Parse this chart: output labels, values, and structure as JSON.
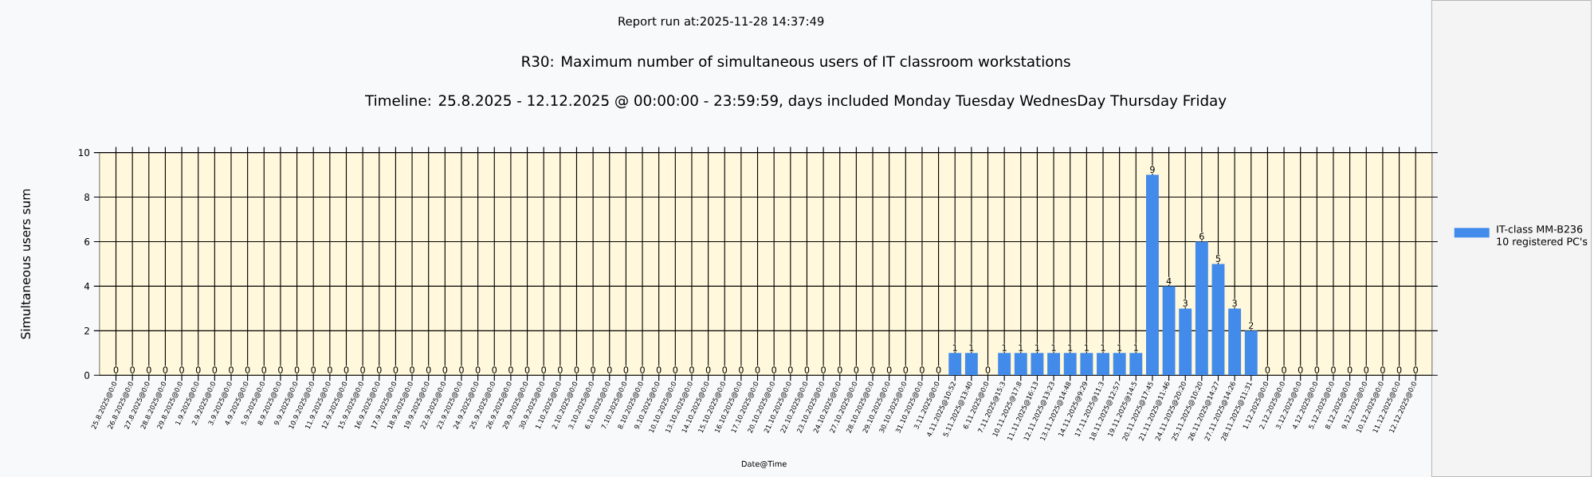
{
  "chart_data": {
    "type": "bar",
    "title": "R30: Maximum number of simultaneous users of IT classroom workstations",
    "subtitle": "Timeline: 25.8.2025  - 12.12.2025  @  00:00:00 -  23:59:59, days included Monday Tuesday WednesDay Thursday Friday",
    "xlabel": "Date@Time",
    "ylabel": "Simultaneous users sum",
    "annotations": [
      "Report run at:2025-11-28 14:37:49"
    ],
    "categories": [
      "25.8.2025@0:0",
      "26.8.2025@0:0",
      "27.8.2025@0:0",
      "28.8.2025@0:0",
      "29.8.2025@0:0",
      "1.9.2025@0:0",
      "2.9.2025@0:0",
      "3.9.2025@0:0",
      "4.9.2025@0:0",
      "5.9.2025@0:0",
      "8.9.2025@0:0",
      "9.9.2025@0:0",
      "10.9.2025@0:0",
      "11.9.2025@0:0",
      "12.9.2025@0:0",
      "15.9.2025@0:0",
      "16.9.2025@0:0",
      "17.9.2025@0:0",
      "18.9.2025@0:0",
      "19.9.2025@0:0",
      "22.9.2025@0:0",
      "23.9.2025@0:0",
      "24.9.2025@0:0",
      "25.9.2025@0:0",
      "26.9.2025@0:0",
      "29.9.2025@0:0",
      "30.9.2025@0:0",
      "1.10.2025@0:0",
      "2.10.2025@0:0",
      "3.10.2025@0:0",
      "6.10.2025@0:0",
      "7.10.2025@0:0",
      "8.10.2025@0:0",
      "9.10.2025@0:0",
      "10.10.2025@0:0",
      "13.10.2025@0:0",
      "14.10.2025@0:0",
      "15.10.2025@0:0",
      "16.10.2025@0:0",
      "17.10.2025@0:0",
      "20.10.2025@0:0",
      "21.10.2025@0:0",
      "22.10.2025@0:0",
      "23.10.2025@0:0",
      "24.10.2025@0:0",
      "27.10.2025@0:0",
      "28.10.2025@0:0",
      "29.10.2025@0:0",
      "30.10.2025@0:0",
      "31.10.2025@0:0",
      "3.11.2025@0:0",
      "4.11.2025@10:52",
      "5.11.2025@13:40",
      "6.11.2025@0:0",
      "7.11.2025@15:3",
      "10.11.2025@17:8",
      "11.11.2025@16:13",
      "12.11.2025@13:23",
      "13.11.2025@14:48",
      "14.11.2025@9:29",
      "17.11.2025@11:3",
      "18.11.2025@12:57",
      "19.11.2025@14:5",
      "20.11.2025@17:45",
      "21.11.2025@11:46",
      "24.11.2025@20:20",
      "25.11.2025@10:20",
      "26.11.2025@14:27",
      "27.11.2025@14:26",
      "28.11.2025@11:31",
      "1.12.2025@0:0",
      "2.12.2025@0:0",
      "3.12.2025@0:0",
      "4.12.2025@0:0",
      "5.12.2025@0:0",
      "8.12.2025@0:0",
      "9.12.2025@0:0",
      "10.12.2025@0:0",
      "11.12.2025@0:0",
      "12.12.2025@0:0"
    ],
    "series": [
      {
        "name": "IT-class MM-B236 10 registered PC's",
        "color": "#428bea",
        "values": [
          0,
          0,
          0,
          0,
          0,
          0,
          0,
          0,
          0,
          0,
          0,
          0,
          0,
          0,
          0,
          0,
          0,
          0,
          0,
          0,
          0,
          0,
          0,
          0,
          0,
          0,
          0,
          0,
          0,
          0,
          0,
          0,
          0,
          0,
          0,
          0,
          0,
          0,
          0,
          0,
          0,
          0,
          0,
          0,
          0,
          0,
          0,
          0,
          0,
          0,
          0,
          1,
          1,
          0,
          1,
          1,
          1,
          1,
          1,
          1,
          1,
          1,
          1,
          9,
          4,
          3,
          6,
          5,
          3,
          2,
          0,
          0,
          0,
          0,
          0,
          0,
          0,
          0,
          0,
          0
        ]
      }
    ],
    "ylim": [
      0,
      10
    ],
    "yticks": [
      0,
      2,
      4,
      6,
      8,
      10
    ],
    "grid": true,
    "legend": "right",
    "data_labels": true
  }
}
